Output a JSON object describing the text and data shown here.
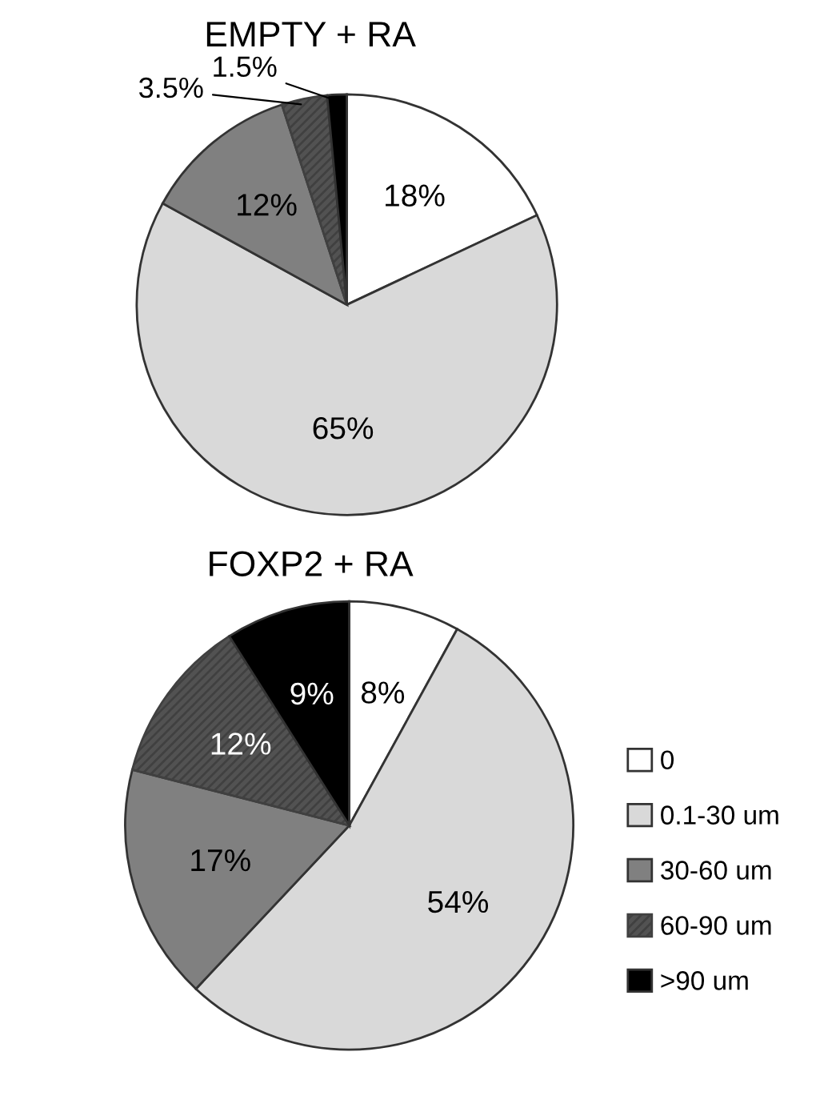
{
  "chart_data": [
    {
      "type": "pie",
      "title": "EMPTY + RA",
      "categories": [
        "0",
        "0.1-30 um",
        "30-60 um",
        "60-90 um",
        ">90 um"
      ],
      "values": [
        18,
        65,
        12,
        3.5,
        1.5
      ],
      "value_labels": [
        "18%",
        "65%",
        "12%",
        "3.5%",
        "1.5%"
      ],
      "colors": [
        "#ffffff",
        "#d9d9d9",
        "#808080",
        "#404040",
        "#000000"
      ],
      "legend": "bottom right"
    },
    {
      "type": "pie",
      "title": "FOXP2 + RA",
      "values": [
        8,
        54,
        17,
        12,
        9
      ],
      "value_labels": [
        "8%",
        "54%",
        "17%",
        "12%",
        "9%"
      ],
      "colors": [
        "#ffffff",
        "#d9d9d9",
        "#808080",
        "#404040",
        "#000000"
      ]
    }
  ]
}
